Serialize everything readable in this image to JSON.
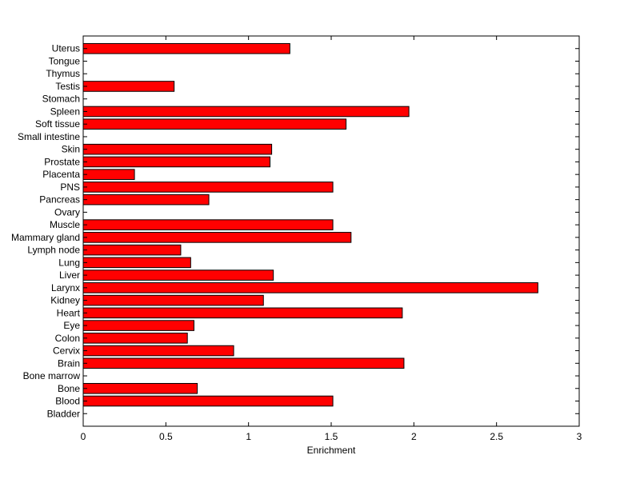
{
  "chart_data": {
    "type": "bar",
    "orientation": "horizontal",
    "xlabel": "Enrichment",
    "ylabel": "",
    "title": "",
    "xlim": [
      0,
      3
    ],
    "xticks": [
      0,
      0.5,
      1,
      1.5,
      2,
      2.5,
      3
    ],
    "xtick_labels": [
      "0",
      "0.5",
      "1",
      "1.5",
      "2",
      "2.5",
      "3"
    ],
    "grid": false,
    "legend": "none",
    "bar_color": "#ff0000",
    "edge_color": "#000000",
    "categories": [
      "Uterus",
      "Tongue",
      "Thymus",
      "Testis",
      "Stomach",
      "Spleen",
      "Soft tissue",
      "Small intestine",
      "Skin",
      "Prostate",
      "Placenta",
      "PNS",
      "Pancreas",
      "Ovary",
      "Muscle",
      "Mammary gland",
      "Lymph node",
      "Lung",
      "Liver",
      "Larynx",
      "Kidney",
      "Heart",
      "Eye",
      "Colon",
      "Cervix",
      "Brain",
      "Bone marrow",
      "Bone",
      "Blood",
      "Bladder"
    ],
    "values": [
      1.25,
      0,
      0,
      0.55,
      0,
      1.97,
      1.59,
      0,
      1.14,
      1.13,
      0.31,
      1.51,
      0.76,
      0,
      1.51,
      1.62,
      0.59,
      0.65,
      1.15,
      2.75,
      1.09,
      1.93,
      0.67,
      0.63,
      0.91,
      1.94,
      0,
      0.69,
      1.51,
      0
    ]
  }
}
